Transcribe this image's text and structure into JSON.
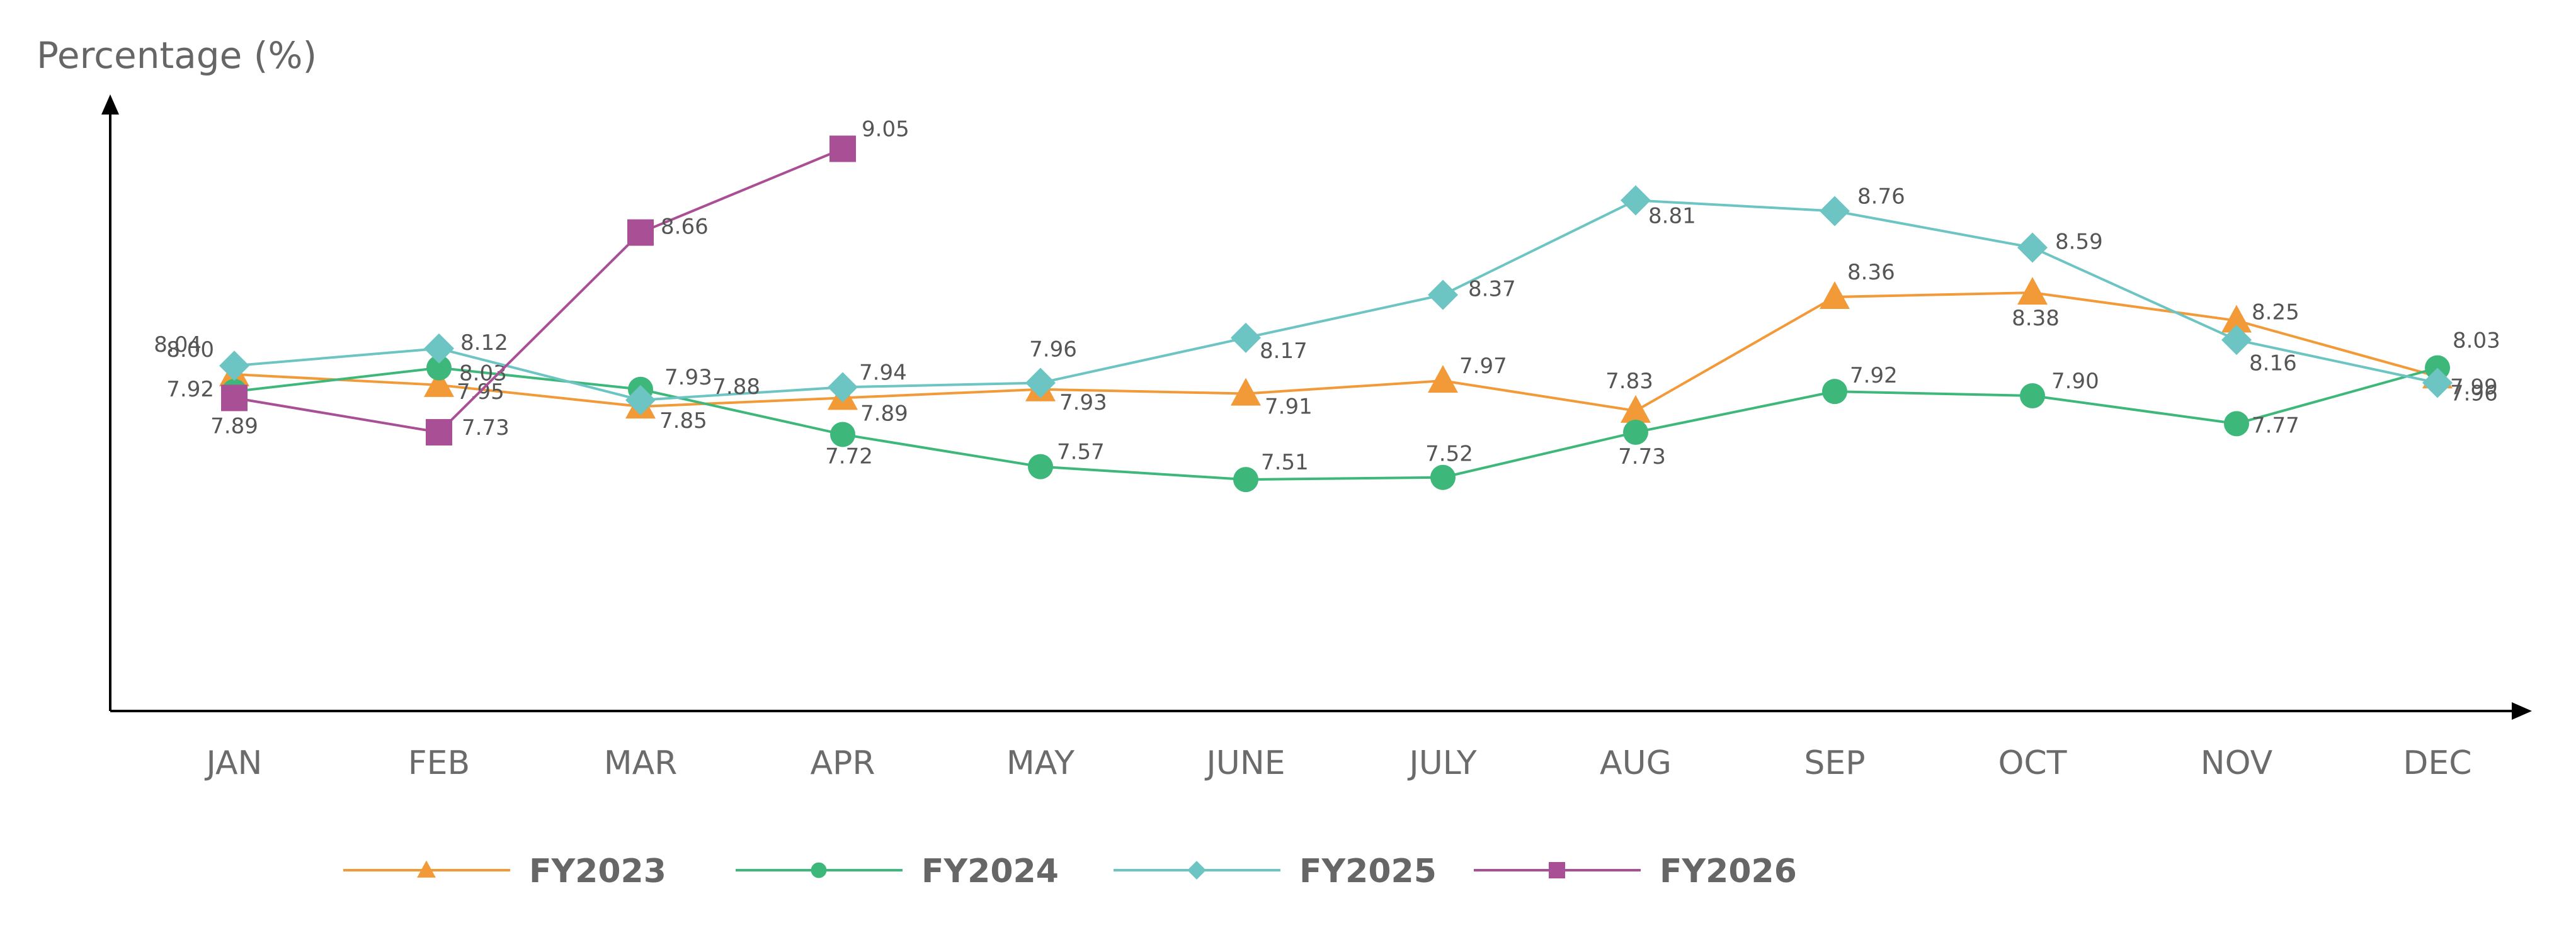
{
  "chart_data": {
    "type": "line",
    "ylabel": "Percentage (%)",
    "xlabel": "",
    "categories": [
      "JAN",
      "FEB",
      "MAR",
      "APR",
      "MAY",
      "JUNE",
      "JULY",
      "AUG",
      "SEP",
      "OCT",
      "NOV",
      "DEC"
    ],
    "ylim": [
      6.4,
      9.4
    ],
    "grid": false,
    "legend_position": "bottom",
    "series": [
      {
        "name": "FY2023",
        "color": "#F29A38",
        "marker": "triangle",
        "values": [
          8.0,
          7.95,
          7.85,
          7.89,
          7.93,
          7.91,
          7.97,
          7.83,
          8.36,
          8.38,
          8.25,
          7.99
        ],
        "labels": [
          "8.00",
          "7.95",
          "7.85",
          "7.89",
          "7.93",
          "7.91",
          "7.97",
          "7.83",
          "8.36",
          "8.38",
          "8.25",
          "7.99"
        ]
      },
      {
        "name": "FY2024",
        "color": "#3DB87A",
        "marker": "circle",
        "values": [
          7.92,
          8.03,
          7.93,
          7.72,
          7.57,
          7.51,
          7.52,
          7.73,
          7.92,
          7.9,
          7.77,
          8.03
        ],
        "labels": [
          "7.92",
          "8.03",
          "7.93",
          "7.72",
          "7.57",
          "7.51",
          "7.52",
          "7.73",
          "7.92",
          "7.90",
          "7.77",
          "8.03"
        ]
      },
      {
        "name": "FY2025",
        "color": "#6CC5C3",
        "marker": "diamond",
        "values": [
          8.04,
          8.12,
          7.88,
          7.94,
          7.96,
          8.17,
          8.37,
          8.81,
          8.76,
          8.59,
          8.16,
          7.96
        ],
        "labels": [
          "8.04",
          "8.12",
          "7.88",
          "7.94",
          "7.96",
          "8.17",
          "8.37",
          "8.81",
          "8.76",
          "8.59",
          "8.16",
          "7.96"
        ]
      },
      {
        "name": "FY2026",
        "color": "#A94F95",
        "marker": "square",
        "values": [
          7.89,
          7.73,
          8.66,
          9.05,
          null,
          null,
          null,
          null,
          null,
          null,
          null,
          null
        ],
        "labels": [
          "7.89",
          "7.73",
          "8.66",
          "9.05",
          "",
          "",
          "",
          "",
          "",
          "",
          "",
          ""
        ]
      }
    ]
  }
}
